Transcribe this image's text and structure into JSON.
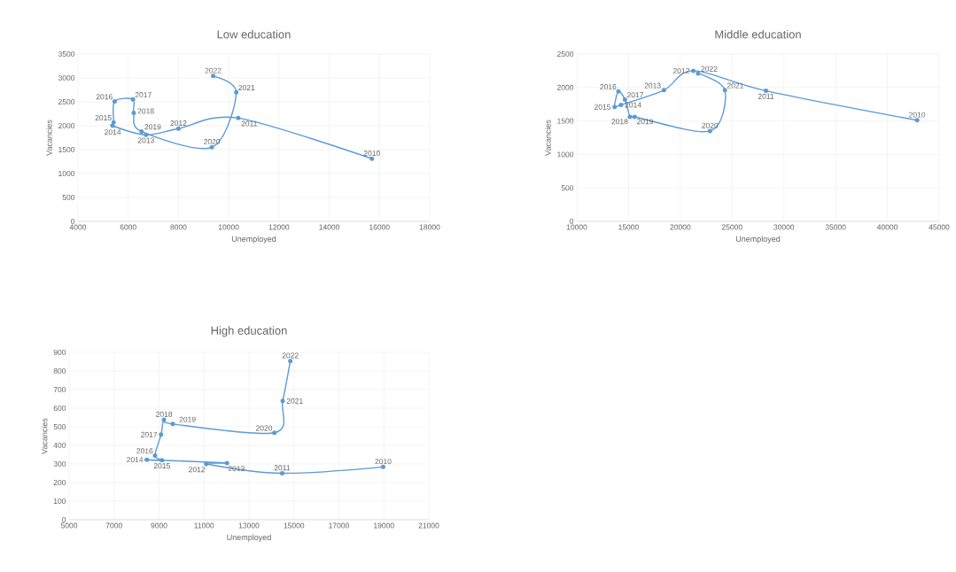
{
  "chart_data": [
    {
      "type": "line",
      "title": "Low education",
      "xlabel": "Unemployed",
      "ylabel": "Vacancies",
      "color": "#5b9bd5",
      "marker": "circle",
      "line_style": "solid",
      "grid": true,
      "x": [
        15700,
        10380,
        8000,
        6710,
        5380,
        5420,
        5460,
        6190,
        6220,
        6530,
        9330,
        10300,
        9380
      ],
      "values": [
        1310,
        2160,
        1940,
        1810,
        2000,
        2070,
        2510,
        2550,
        2270,
        1880,
        1550,
        2700,
        3040
      ],
      "annotations": [
        {
          "text": "2010",
          "x": 15700,
          "y": 1310
        },
        {
          "text": "2011",
          "x": 10380,
          "y": 2160
        },
        {
          "text": "2012",
          "x": 8000,
          "y": 1940
        },
        {
          "text": "2013",
          "x": 6710,
          "y": 1810
        },
        {
          "text": "2014",
          "x": 5380,
          "y": 2000
        },
        {
          "text": "2015",
          "x": 5420,
          "y": 2070
        },
        {
          "text": "2016",
          "x": 5460,
          "y": 2510
        },
        {
          "text": "2017",
          "x": 6190,
          "y": 2550
        },
        {
          "text": "2018",
          "x": 6220,
          "y": 2270
        },
        {
          "text": "2019",
          "x": 6530,
          "y": 1880
        },
        {
          "text": "2020",
          "x": 9330,
          "y": 1550
        },
        {
          "text": "2021",
          "x": 10300,
          "y": 2700
        },
        {
          "text": "2022",
          "x": 9380,
          "y": 3040
        }
      ],
      "xlim": [
        4000,
        18000
      ],
      "xticks": [
        4000,
        6000,
        8000,
        10000,
        12000,
        14000,
        16000,
        18000
      ],
      "ylim": [
        0,
        3500
      ],
      "yticks": [
        0,
        500,
        1000,
        1500,
        2000,
        2500,
        3000,
        3500
      ]
    },
    {
      "type": "line",
      "title": "Middle education",
      "xlabel": "Unemployed",
      "ylabel": "Vacancies",
      "color": "#5b9bd5",
      "marker": "circle",
      "line_style": "solid",
      "grid": true,
      "x": [
        42870,
        28270,
        21260,
        18410,
        14270,
        13650,
        14020,
        14650,
        15140,
        15590,
        22860,
        24310,
        21710
      ],
      "values": [
        1510,
        1950,
        2250,
        1960,
        1740,
        1710,
        1940,
        1820,
        1560,
        1560,
        1350,
        1960,
        2210
      ],
      "annotations": [
        {
          "text": "2010",
          "x": 42870,
          "y": 1510
        },
        {
          "text": "2011",
          "x": 28270,
          "y": 1950
        },
        {
          "text": "2012",
          "x": 21260,
          "y": 2250
        },
        {
          "text": "2013",
          "x": 18410,
          "y": 1960
        },
        {
          "text": "2014",
          "x": 14270,
          "y": 1740
        },
        {
          "text": "2015",
          "x": 13650,
          "y": 1710
        },
        {
          "text": "2016",
          "x": 14020,
          "y": 1940
        },
        {
          "text": "2017",
          "x": 14650,
          "y": 1820
        },
        {
          "text": "2018",
          "x": 15140,
          "y": 1560
        },
        {
          "text": "2019",
          "x": 15590,
          "y": 1560
        },
        {
          "text": "2020",
          "x": 22860,
          "y": 1350
        },
        {
          "text": "2021",
          "x": 24310,
          "y": 1960
        },
        {
          "text": "2022",
          "x": 21710,
          "y": 2210
        }
      ],
      "xlim": [
        10000,
        45000
      ],
      "xticks": [
        10000,
        15000,
        20000,
        25000,
        30000,
        35000,
        40000,
        45000
      ],
      "ylim": [
        0,
        2500
      ],
      "yticks": [
        0,
        500,
        1000,
        1500,
        2000,
        2500
      ]
    },
    {
      "type": "line",
      "title": "High education",
      "xlabel": "Unemployed",
      "ylabel": "Vacancies",
      "color": "#5b9bd5",
      "marker": "circle",
      "line_style": "solid",
      "grid": true,
      "x": [
        18970,
        14475,
        11100,
        12020,
        8460,
        9130,
        8820,
        9090,
        9220,
        9610,
        14130,
        14500,
        14840
      ],
      "values": [
        284,
        250,
        300,
        305,
        323,
        320,
        345,
        458,
        538,
        515,
        468,
        639,
        854
      ],
      "annotations": [
        {
          "text": "2010",
          "x": 18970,
          "y": 284
        },
        {
          "text": "2011",
          "x": 14475,
          "y": 250
        },
        {
          "text": "2012",
          "x": 11100,
          "y": 300
        },
        {
          "text": "2013",
          "x": 12020,
          "y": 305
        },
        {
          "text": "2014",
          "x": 8460,
          "y": 323
        },
        {
          "text": "2015",
          "x": 9130,
          "y": 320
        },
        {
          "text": "2016",
          "x": 8820,
          "y": 345
        },
        {
          "text": "2017",
          "x": 9090,
          "y": 458
        },
        {
          "text": "2018",
          "x": 9220,
          "y": 538
        },
        {
          "text": "2019",
          "x": 9610,
          "y": 515
        },
        {
          "text": "2020",
          "x": 14130,
          "y": 468
        },
        {
          "text": "2021",
          "x": 14500,
          "y": 639
        },
        {
          "text": "2022",
          "x": 14840,
          "y": 854
        }
      ],
      "xlim": [
        5000,
        21000
      ],
      "xticks": [
        5000,
        7000,
        9000,
        11000,
        13000,
        15000,
        17000,
        19000,
        21000
      ],
      "ylim": [
        0,
        900
      ],
      "yticks": [
        0,
        100,
        200,
        300,
        400,
        500,
        600,
        700,
        800,
        900
      ]
    }
  ]
}
